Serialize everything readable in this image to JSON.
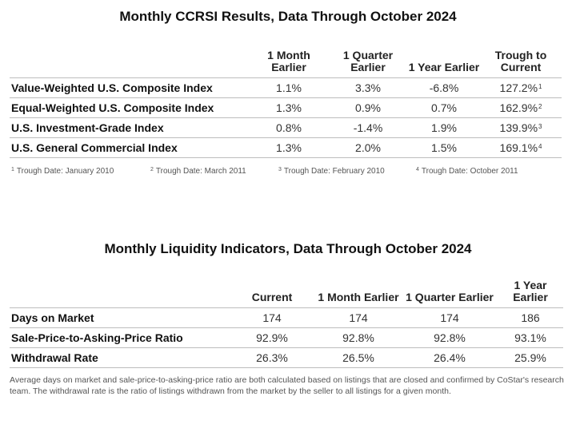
{
  "ccrsi": {
    "title": "Monthly CCRSI Results, Data Through October 2024",
    "headers": [
      "1 Month Earlier",
      "1 Quarter Earlier",
      "1 Year Earlier",
      "Trough to Current"
    ],
    "rows": [
      {
        "label": "Value-Weighted U.S. Composite Index",
        "values": [
          "1.1%",
          "3.3%",
          "-6.8%",
          "127.2%"
        ],
        "note": "1"
      },
      {
        "label": "Equal-Weighted U.S. Composite Index",
        "values": [
          "1.3%",
          "0.9%",
          "0.7%",
          "162.9%"
        ],
        "note": "2"
      },
      {
        "label": "U.S. Investment-Grade Index",
        "values": [
          "0.8%",
          "-1.4%",
          "1.9%",
          "139.9%"
        ],
        "note": "3"
      },
      {
        "label": "U.S. General Commercial Index",
        "values": [
          "1.3%",
          "2.0%",
          "1.5%",
          "169.1%"
        ],
        "note": "4"
      }
    ],
    "footnotes": [
      {
        "num": "1",
        "text": "Trough Date: January 2010"
      },
      {
        "num": "2",
        "text": "Trough Date: March 2011"
      },
      {
        "num": "3",
        "text": "Trough Date: February 2010"
      },
      {
        "num": "4",
        "text": "Trough Date: October 2011"
      }
    ]
  },
  "liquidity": {
    "title": "Monthly Liquidity Indicators, Data Through October 2024",
    "headers": [
      "Current",
      "1 Month Earlier",
      "1 Quarter Earlier",
      "1 Year Earlier"
    ],
    "rows": [
      {
        "label": "Days on Market",
        "values": [
          "174",
          "174",
          "174",
          "186"
        ]
      },
      {
        "label": "Sale-Price-to-Asking-Price Ratio",
        "values": [
          "92.9%",
          "92.8%",
          "92.8%",
          "93.1%"
        ]
      },
      {
        "label": "Withdrawal Rate",
        "values": [
          "26.3%",
          "26.5%",
          "26.4%",
          "25.9%"
        ]
      }
    ],
    "note": "Average days on market and sale-price-to-asking-price ratio are both calculated based on listings that are closed and confirmed by CoStar's research team. The withdrawal rate is the ratio of listings withdrawn from the market by the seller to all listings for a given month."
  }
}
